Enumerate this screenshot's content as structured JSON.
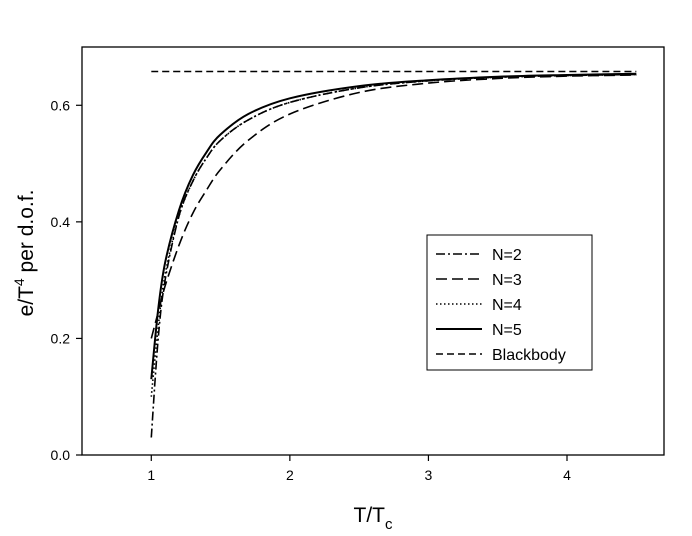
{
  "chart_data": {
    "type": "line",
    "xlabel": {
      "main": "T/T",
      "sub": "c"
    },
    "ylabel": {
      "main": "e/T",
      "sup": "4",
      "rest": " per d.o.f."
    },
    "xlim": [
      0.5,
      4.7
    ],
    "ylim": [
      0.0,
      0.7
    ],
    "x_ticks": [
      1,
      2,
      3,
      4
    ],
    "x_tick_labels": [
      "1",
      "2",
      "3",
      "4"
    ],
    "y_ticks": [
      0.0,
      0.2,
      0.4,
      0.6
    ],
    "y_tick_labels": [
      "0.0",
      "0.2",
      "0.4",
      "0.6"
    ],
    "grid": false,
    "legend_position": "center-right",
    "series": [
      {
        "name": "N=2",
        "dash": "dashdot",
        "x": [
          1.0,
          1.05,
          1.1,
          1.2,
          1.3,
          1.4,
          1.5,
          1.7,
          2.0,
          2.5,
          3.0,
          3.5,
          4.0,
          4.5
        ],
        "y": [
          0.03,
          0.2,
          0.3,
          0.41,
          0.47,
          0.51,
          0.54,
          0.575,
          0.605,
          0.63,
          0.642,
          0.648,
          0.651,
          0.653
        ]
      },
      {
        "name": "N=3",
        "dash": "longdash",
        "x": [
          1.0,
          1.05,
          1.1,
          1.2,
          1.3,
          1.4,
          1.5,
          1.7,
          2.0,
          2.5,
          3.0,
          3.5,
          4.0,
          4.5
        ],
        "y": [
          0.2,
          0.245,
          0.29,
          0.36,
          0.415,
          0.455,
          0.49,
          0.54,
          0.585,
          0.622,
          0.638,
          0.646,
          0.65,
          0.652
        ]
      },
      {
        "name": "N=4",
        "dash": "dotted",
        "x": [
          1.0,
          1.05,
          1.1,
          1.2,
          1.3,
          1.4,
          1.5,
          1.7,
          2.0,
          2.5,
          3.0,
          3.5,
          4.0,
          4.5
        ],
        "y": [
          0.1,
          0.22,
          0.31,
          0.41,
          0.47,
          0.51,
          0.54,
          0.575,
          0.605,
          0.63,
          0.642,
          0.648,
          0.651,
          0.653
        ]
      },
      {
        "name": "N=5",
        "dash": "solid",
        "x": [
          1.0,
          1.05,
          1.1,
          1.2,
          1.3,
          1.4,
          1.5,
          1.7,
          2.0,
          2.5,
          3.0,
          3.5,
          4.0,
          4.5
        ],
        "y": [
          0.13,
          0.25,
          0.33,
          0.42,
          0.48,
          0.52,
          0.55,
          0.585,
          0.612,
          0.633,
          0.643,
          0.649,
          0.652,
          0.654
        ]
      },
      {
        "name": "Blackbody",
        "dash": "shortdash",
        "x": [
          1.0,
          4.5
        ],
        "y": [
          0.658,
          0.658
        ]
      }
    ]
  },
  "colors": {
    "line": "#000000",
    "background": "#ffffff"
  }
}
